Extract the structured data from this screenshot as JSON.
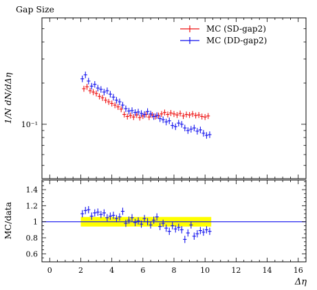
{
  "chart_data": {
    "type": "scatter",
    "title": "Gap Size",
    "xlabel": "Δη",
    "ylabel": "1/N dN/dΔη",
    "xlim": [
      -0.5,
      16.5
    ],
    "x_ticks": [
      "0",
      "2",
      "4",
      "6",
      "8",
      "10",
      "12",
      "14",
      "16"
    ],
    "main": {
      "yscale": "log",
      "ylim": [
        0.04,
        0.6
      ],
      "y_ticks": [
        {
          "value": 0.1,
          "label": "10⁻¹"
        }
      ],
      "legend_position": "top-right",
      "series": [
        {
          "name": "MC (SD-gap2)",
          "color": "#ee1111",
          "x": [
            2.2,
            2.4,
            2.6,
            2.8,
            3.0,
            3.2,
            3.4,
            3.6,
            3.8,
            4.0,
            4.2,
            4.4,
            4.6,
            4.8,
            5.0,
            5.2,
            5.4,
            5.6,
            5.8,
            6.0,
            6.2,
            6.4,
            6.6,
            6.8,
            7.0,
            7.2,
            7.4,
            7.6,
            7.8,
            8.0,
            8.2,
            8.4,
            8.6,
            8.8,
            9.0,
            9.2,
            9.4,
            9.6,
            9.8,
            10.0,
            10.2
          ],
          "y": [
            0.182,
            0.188,
            0.176,
            0.172,
            0.168,
            0.16,
            0.156,
            0.15,
            0.146,
            0.142,
            0.138,
            0.134,
            0.129,
            0.118,
            0.114,
            0.116,
            0.113,
            0.117,
            0.112,
            0.115,
            0.118,
            0.113,
            0.117,
            0.114,
            0.116,
            0.119,
            0.122,
            0.118,
            0.121,
            0.119,
            0.117,
            0.12,
            0.115,
            0.118,
            0.117,
            0.119,
            0.116,
            0.117,
            0.114,
            0.113,
            0.115
          ]
        },
        {
          "name": "MC (DD-gap2)",
          "color": "#1111ee",
          "x": [
            2.1,
            2.3,
            2.5,
            2.7,
            2.9,
            3.1,
            3.3,
            3.5,
            3.7,
            3.9,
            4.1,
            4.3,
            4.5,
            4.7,
            4.9,
            5.1,
            5.3,
            5.5,
            5.7,
            5.9,
            6.1,
            6.3,
            6.5,
            6.7,
            6.9,
            7.1,
            7.3,
            7.5,
            7.7,
            7.9,
            8.1,
            8.3,
            8.5,
            8.7,
            8.9,
            9.1,
            9.3,
            9.5,
            9.7,
            9.9,
            10.1,
            10.3
          ],
          "y": [
            0.215,
            0.23,
            0.207,
            0.19,
            0.196,
            0.184,
            0.18,
            0.172,
            0.176,
            0.166,
            0.158,
            0.15,
            0.146,
            0.138,
            0.13,
            0.125,
            0.126,
            0.122,
            0.123,
            0.12,
            0.118,
            0.124,
            0.119,
            0.114,
            0.116,
            0.11,
            0.108,
            0.104,
            0.106,
            0.098,
            0.096,
            0.102,
            0.1,
            0.094,
            0.09,
            0.092,
            0.094,
            0.089,
            0.091,
            0.086,
            0.083,
            0.084
          ]
        }
      ]
    },
    "ratio": {
      "ylabel": "MC/data",
      "ylim": [
        0.5,
        1.52
      ],
      "y_ticks": [
        "0.6",
        "0.8",
        "1",
        "1.2",
        "1.4"
      ],
      "reference_line": 1.0,
      "band": {
        "x": [
          2.0,
          10.4
        ],
        "y": [
          0.94,
          1.06
        ],
        "color": "#ffff00"
      },
      "series": [
        {
          "name": "MC (DD-gap2)",
          "color": "#1111ee",
          "x": [
            2.1,
            2.3,
            2.5,
            2.7,
            2.9,
            3.1,
            3.3,
            3.5,
            3.7,
            3.9,
            4.1,
            4.3,
            4.5,
            4.7,
            4.9,
            5.1,
            5.3,
            5.5,
            5.7,
            5.9,
            6.1,
            6.3,
            6.5,
            6.7,
            6.9,
            7.1,
            7.3,
            7.5,
            7.7,
            7.9,
            8.1,
            8.3,
            8.5,
            8.7,
            8.9,
            9.1,
            9.3,
            9.5,
            9.7,
            9.9,
            10.1,
            10.3
          ],
          "y": [
            1.1,
            1.14,
            1.15,
            1.07,
            1.11,
            1.12,
            1.09,
            1.11,
            1.05,
            1.07,
            1.08,
            1.04,
            1.06,
            1.13,
            0.98,
            1.02,
            1.05,
            0.99,
            1.01,
            0.97,
            1.04,
            1.0,
            0.96,
            1.02,
            1.06,
            0.94,
            0.98,
            0.92,
            0.88,
            0.95,
            0.91,
            0.93,
            0.9,
            0.78,
            0.86,
            0.96,
            0.82,
            0.85,
            0.89,
            0.87,
            0.9,
            0.88
          ]
        }
      ]
    }
  }
}
